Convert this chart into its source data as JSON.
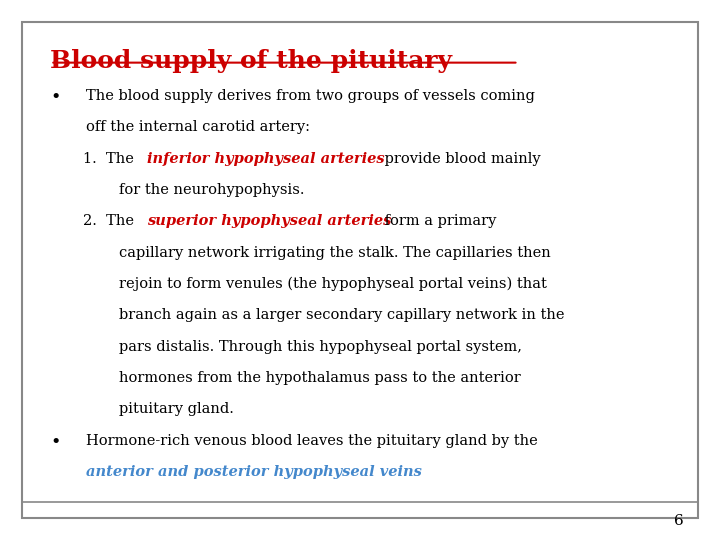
{
  "title": "Blood supply of the pituitary",
  "title_color": "#CC0000",
  "title_underline": true,
  "bg_color": "#FFFFFF",
  "border_color": "#888888",
  "page_number": "6",
  "font_family": "serif",
  "body_color": "#000000",
  "red_color": "#CC0000",
  "blue_color": "#4488CC",
  "bullet1_line1": "The blood supply derives from two groups of vessels coming",
  "bullet1_line2": "off the internal carotid artery:",
  "item1_pre": "The ",
  "item1_red": "inferior hypophyseal arteries",
  "item1_post": " provide blood mainly",
  "item1_line2": "for the neurohypophysis.",
  "item2_pre": "The ",
  "item2_red": "superior hypophyseal arteries",
  "item2_post": " form a primary",
  "item2_lines": [
    "capillary network irrigating the stalk. The capillaries then",
    "rejoin to form venules (the hypophyseal portal veins) that",
    "branch again as a larger secondary capillary network in the",
    "pars distalis. Through this hypophyseal portal system,",
    "hormones from the hypothalamus pass to the anterior",
    "pituitary gland."
  ],
  "bullet2_line1": "Hormone-rich venous blood leaves the pituitary gland by the",
  "bullet2_blue": "anterior and posterior hypophyseal veins"
}
